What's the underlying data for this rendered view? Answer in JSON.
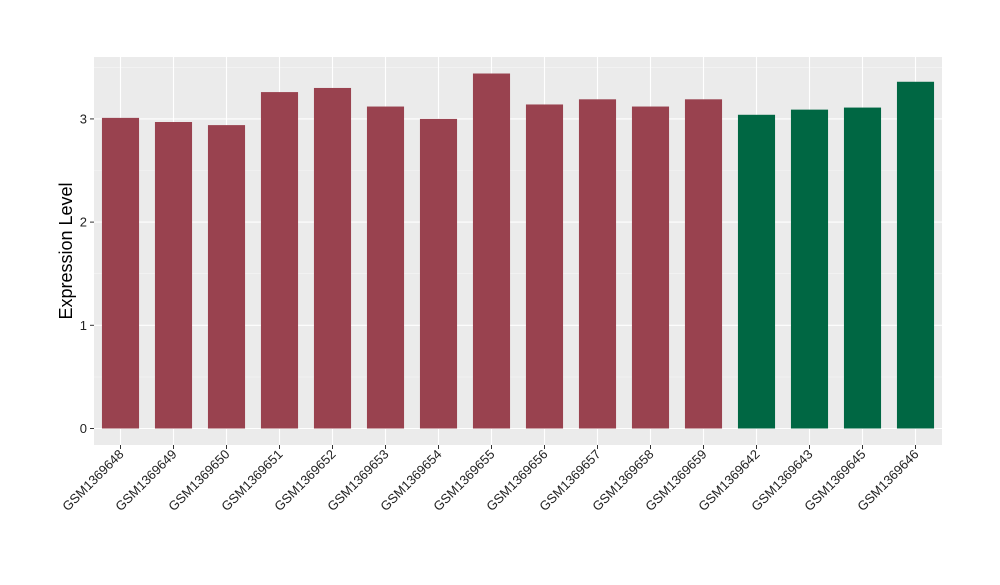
{
  "chart_data": {
    "type": "bar",
    "title": "",
    "xlabel": "",
    "ylabel": "Expression Level",
    "ylim": [
      -0.16,
      3.6
    ],
    "yticks": [
      0,
      1,
      2,
      3
    ],
    "grid": true,
    "legend": "none",
    "categories": [
      "GSM1369648",
      "GSM1369649",
      "GSM1369650",
      "GSM1369651",
      "GSM1369652",
      "GSM1369653",
      "GSM1369654",
      "GSM1369655",
      "GSM1369656",
      "GSM1369657",
      "GSM1369658",
      "GSM1369659",
      "GSM1369642",
      "GSM1369643",
      "GSM1369645",
      "GSM1369646"
    ],
    "values": [
      3.01,
      2.97,
      2.94,
      3.26,
      3.3,
      3.12,
      3.0,
      3.44,
      3.14,
      3.19,
      3.12,
      3.19,
      3.04,
      3.09,
      3.11,
      3.36
    ],
    "bar_colors": [
      "#99424f",
      "#99424f",
      "#99424f",
      "#99424f",
      "#99424f",
      "#99424f",
      "#99424f",
      "#99424f",
      "#99424f",
      "#99424f",
      "#99424f",
      "#99424f",
      "#006743",
      "#006743",
      "#006743",
      "#006743"
    ],
    "colors": {
      "panel_background": "#ebebeb",
      "grid_major": "#ffffff",
      "grid_minor": "#f5f5f5",
      "tick_mark": "#333333"
    }
  }
}
